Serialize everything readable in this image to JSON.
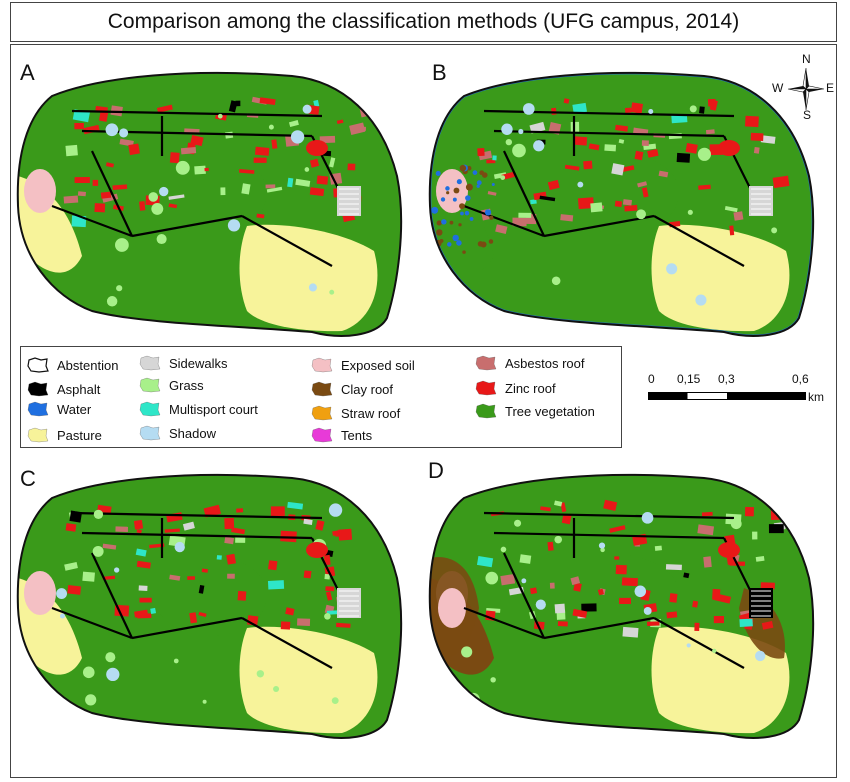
{
  "title": "Comparison among the classification methods (UFG campus, 2014)",
  "panels": [
    {
      "label": "A"
    },
    {
      "label": "B"
    },
    {
      "label": "C"
    },
    {
      "label": "D"
    }
  ],
  "compass": {
    "n": "N",
    "s": "S",
    "e": "E",
    "w": "W"
  },
  "legend": [
    {
      "label": "Abstention",
      "color": "#ffffff"
    },
    {
      "label": "Asphalt",
      "color": "#000000"
    },
    {
      "label": "Water",
      "color": "#1f6fe0"
    },
    {
      "label": "Pasture",
      "color": "#f7f39a"
    },
    {
      "label": "Sidewalks",
      "color": "#d6d6d6"
    },
    {
      "label": "Grass",
      "color": "#a8f08a"
    },
    {
      "label": "Multisport court",
      "color": "#2ee6c8"
    },
    {
      "label": "Shadow",
      "color": "#b5dcf2"
    },
    {
      "label": "Exposed soil",
      "color": "#f4c0c4"
    },
    {
      "label": "Clay roof",
      "color": "#7a4a12"
    },
    {
      "label": "Straw roof",
      "color": "#f0a010"
    },
    {
      "label": "Tents",
      "color": "#e83ad8"
    },
    {
      "label": "Asbestos roof",
      "color": "#c86e6e"
    },
    {
      "label": "Zinc roof",
      "color": "#e81818"
    },
    {
      "label": "Tree vegetation",
      "color": "#3a9a1a"
    }
  ],
  "scale": {
    "ticks": [
      "0",
      "0,15",
      "0,3",
      "0,6"
    ],
    "unit": "km"
  }
}
